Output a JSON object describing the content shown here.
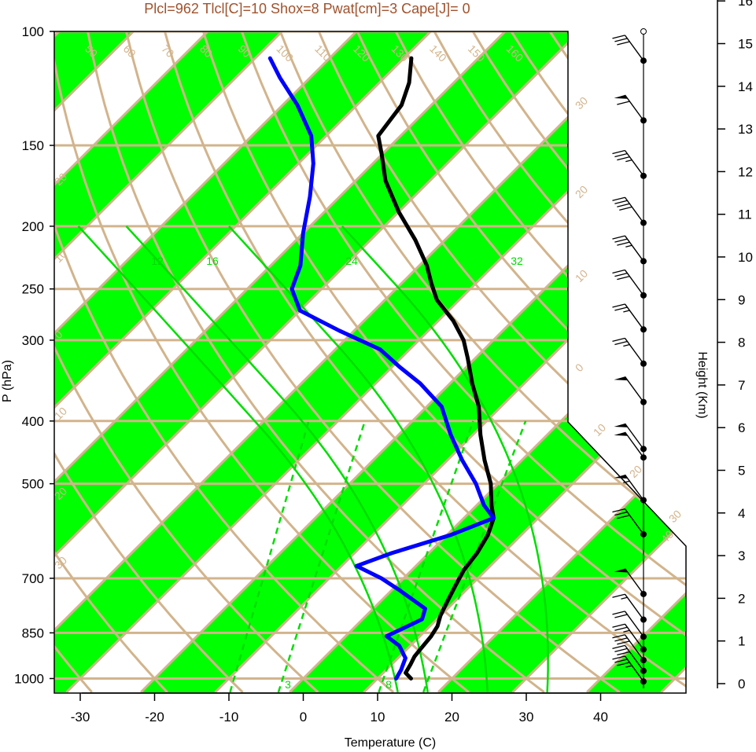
{
  "title": "Plcl=962 Tlcl[C]=10 Shox=8 Pwat[cm]=3 Cape[J]= 0",
  "colors": {
    "title": "#a0522d",
    "band": "#00ff00",
    "isotherm": "#d2b48c",
    "mixing_ratio": "#00dd00",
    "temperature": "#000000",
    "dewpoint": "#0000ff"
  },
  "chart_data": {
    "type": "line",
    "subtype": "skew-t log-p sounding",
    "xlabel": "Temperature (C)",
    "ylabel": "P (hPa)",
    "y2label": "Height (Km)",
    "xlim": [
      -33,
      49
    ],
    "ylim": [
      1050,
      100
    ],
    "x_ticks": [
      "-30",
      "-20",
      "-10",
      "0",
      "10",
      "20",
      "30",
      "40"
    ],
    "x_tick_values": [
      -30,
      -20,
      -10,
      0,
      10,
      20,
      30,
      40
    ],
    "y_ticks": [
      "100",
      "150",
      "200",
      "250",
      "300",
      "400",
      "500",
      "700",
      "850",
      "1000"
    ],
    "y_tick_values": [
      100,
      150,
      200,
      250,
      300,
      400,
      500,
      700,
      850,
      1000
    ],
    "height_ticks": [
      "0",
      "1",
      "2",
      "3",
      "4",
      "5",
      "6",
      "7",
      "8",
      "9",
      "10",
      "11",
      "12",
      "13",
      "14",
      "15",
      "16"
    ],
    "isotherm_labels": [
      {
        "label": "50",
        "temp": -50
      },
      {
        "label": "60",
        "temp": -60
      },
      {
        "label": "70",
        "temp": -70
      },
      {
        "label": "80",
        "temp": -80
      },
      {
        "label": "90",
        "temp": -90
      },
      {
        "label": "100",
        "temp": -100
      },
      {
        "label": "110",
        "temp": -110
      },
      {
        "label": "120",
        "temp": -120
      },
      {
        "label": "130",
        "temp": -130
      },
      {
        "label": "140",
        "temp": -140
      },
      {
        "label": "150",
        "temp": -150
      },
      {
        "label": "160",
        "temp": -160
      }
    ],
    "theta_labels": [
      "30",
      "20",
      "10",
      "0",
      "10",
      "20",
      "30",
      "40",
      "20",
      "10",
      "0",
      "10",
      "20",
      "30"
    ],
    "mixing_ratio_labels_top": [
      "12",
      "16",
      "24",
      "32"
    ],
    "mixing_ratio_labels_bottom": [
      "3",
      "8"
    ],
    "series": [
      {
        "name": "Temperature",
        "points": [
          {
            "p": 1000,
            "t": 14.5
          },
          {
            "p": 980,
            "t": 13
          },
          {
            "p": 950,
            "t": 12.5
          },
          {
            "p": 925,
            "t": 12
          },
          {
            "p": 900,
            "t": 11.8
          },
          {
            "p": 860,
            "t": 11.5
          },
          {
            "p": 830,
            "t": 11
          },
          {
            "p": 800,
            "t": 10
          },
          {
            "p": 760,
            "t": 9
          },
          {
            "p": 720,
            "t": 8
          },
          {
            "p": 680,
            "t": 7
          },
          {
            "p": 640,
            "t": 6.5
          },
          {
            "p": 600,
            "t": 5.5
          },
          {
            "p": 565,
            "t": 4
          },
          {
            "p": 540,
            "t": 2
          },
          {
            "p": 500,
            "t": -1
          },
          {
            "p": 460,
            "t": -5
          },
          {
            "p": 420,
            "t": -9
          },
          {
            "p": 380,
            "t": -13
          },
          {
            "p": 350,
            "t": -17
          },
          {
            "p": 320,
            "t": -21
          },
          {
            "p": 300,
            "t": -24
          },
          {
            "p": 280,
            "t": -28
          },
          {
            "p": 260,
            "t": -33
          },
          {
            "p": 245,
            "t": -36
          },
          {
            "p": 230,
            "t": -39
          },
          {
            "p": 210,
            "t": -44
          },
          {
            "p": 190,
            "t": -50
          },
          {
            "p": 170,
            "t": -56
          },
          {
            "p": 155,
            "t": -60
          },
          {
            "p": 145,
            "t": -63
          },
          {
            "p": 130,
            "t": -64
          },
          {
            "p": 120,
            "t": -66
          },
          {
            "p": 110,
            "t": -69
          }
        ]
      },
      {
        "name": "Dewpoint",
        "points": [
          {
            "p": 1000,
            "t": 12.5
          },
          {
            "p": 970,
            "t": 12
          },
          {
            "p": 930,
            "t": 11
          },
          {
            "p": 890,
            "t": 8.5
          },
          {
            "p": 860,
            "t": 5.5
          },
          {
            "p": 840,
            "t": 6.5
          },
          {
            "p": 810,
            "t": 8
          },
          {
            "p": 780,
            "t": 7
          },
          {
            "p": 730,
            "t": 1
          },
          {
            "p": 700,
            "t": -3
          },
          {
            "p": 670,
            "t": -8
          },
          {
            "p": 640,
            "t": -5
          },
          {
            "p": 600,
            "t": 0.5
          },
          {
            "p": 565,
            "t": 4
          },
          {
            "p": 540,
            "t": 1
          },
          {
            "p": 500,
            "t": -3
          },
          {
            "p": 460,
            "t": -8
          },
          {
            "p": 420,
            "t": -13
          },
          {
            "p": 380,
            "t": -18
          },
          {
            "p": 350,
            "t": -24
          },
          {
            "p": 330,
            "t": -29
          },
          {
            "p": 310,
            "t": -34
          },
          {
            "p": 290,
            "t": -42
          },
          {
            "p": 270,
            "t": -50
          },
          {
            "p": 250,
            "t": -54
          },
          {
            "p": 230,
            "t": -56
          },
          {
            "p": 205,
            "t": -60
          },
          {
            "p": 180,
            "t": -64
          },
          {
            "p": 160,
            "t": -68
          },
          {
            "p": 145,
            "t": -72
          },
          {
            "p": 130,
            "t": -78
          },
          {
            "p": 118,
            "t": -84
          },
          {
            "p": 110,
            "t": -88
          }
        ]
      }
    ],
    "wind_barbs": [
      {
        "height_km": 0.05,
        "speed_kt": 35
      },
      {
        "height_km": 0.3,
        "speed_kt": 30
      },
      {
        "height_km": 0.55,
        "speed_kt": 30
      },
      {
        "height_km": 0.8,
        "speed_kt": 25
      },
      {
        "height_km": 1.1,
        "speed_kt": 20
      },
      {
        "height_km": 1.5,
        "speed_kt": 15
      },
      {
        "height_km": 2.1,
        "speed_kt": 50
      },
      {
        "height_km": 3.5,
        "speed_kt": 30
      },
      {
        "height_km": 4.3,
        "speed_kt": 55
      },
      {
        "height_km": 5.3,
        "speed_kt": 50
      },
      {
        "height_km": 5.5,
        "speed_kt": 50
      },
      {
        "height_km": 6.6,
        "speed_kt": 50
      },
      {
        "height_km": 7.5,
        "speed_kt": 25
      },
      {
        "height_km": 8.3,
        "speed_kt": 25
      },
      {
        "height_km": 9.1,
        "speed_kt": 30
      },
      {
        "height_km": 9.9,
        "speed_kt": 35
      },
      {
        "height_km": 10.8,
        "speed_kt": 40
      },
      {
        "height_km": 11.9,
        "speed_kt": 35
      },
      {
        "height_km": 13.2,
        "speed_kt": 60
      },
      {
        "height_km": 14.6,
        "speed_kt": 30
      }
    ]
  }
}
